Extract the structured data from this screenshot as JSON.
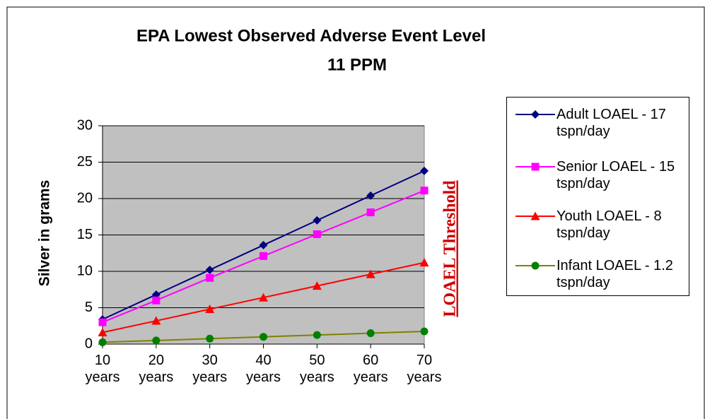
{
  "chart_data": {
    "type": "line",
    "title": "EPA Lowest Observed Adverse Event Level",
    "subtitle": "11 PPM",
    "y_label": "Silver in grams",
    "annotation": "LOAEL Threshold",
    "categories": [
      "10 years",
      "20 years",
      "30 years",
      "40 years",
      "50 years",
      "60 years",
      "70 years"
    ],
    "series": [
      {
        "name": "Adult LOAEL - 17 tspn/day",
        "color": "#000080",
        "marker": "diamond",
        "marker_color": "#000080",
        "values": [
          3.4,
          6.8,
          10.2,
          13.6,
          17.0,
          20.4,
          23.8
        ]
      },
      {
        "name": "Senior LOAEL - 15 tspn/day",
        "color": "#ff00ff",
        "marker": "square",
        "marker_color": "#ff00ff",
        "values": [
          3.0,
          6.0,
          9.1,
          12.1,
          15.1,
          18.1,
          21.1
        ]
      },
      {
        "name": "Youth LOAEL - 8 tspn/day",
        "color": "#ff0000",
        "marker": "triangle",
        "marker_color": "#ff0000",
        "values": [
          1.6,
          3.2,
          4.8,
          6.4,
          8.0,
          9.6,
          11.2
        ]
      },
      {
        "name": "Infant LOAEL - 1.2 tspn/day",
        "color": "#808000",
        "marker": "circle",
        "marker_color": "#008000",
        "values": [
          0.25,
          0.5,
          0.75,
          1.0,
          1.25,
          1.5,
          1.75
        ]
      }
    ],
    "ylim": [
      0,
      30
    ],
    "yticks": [
      0,
      5,
      10,
      15,
      20,
      25,
      30
    ],
    "grid": true,
    "plot_background": "#c0c0c0"
  }
}
